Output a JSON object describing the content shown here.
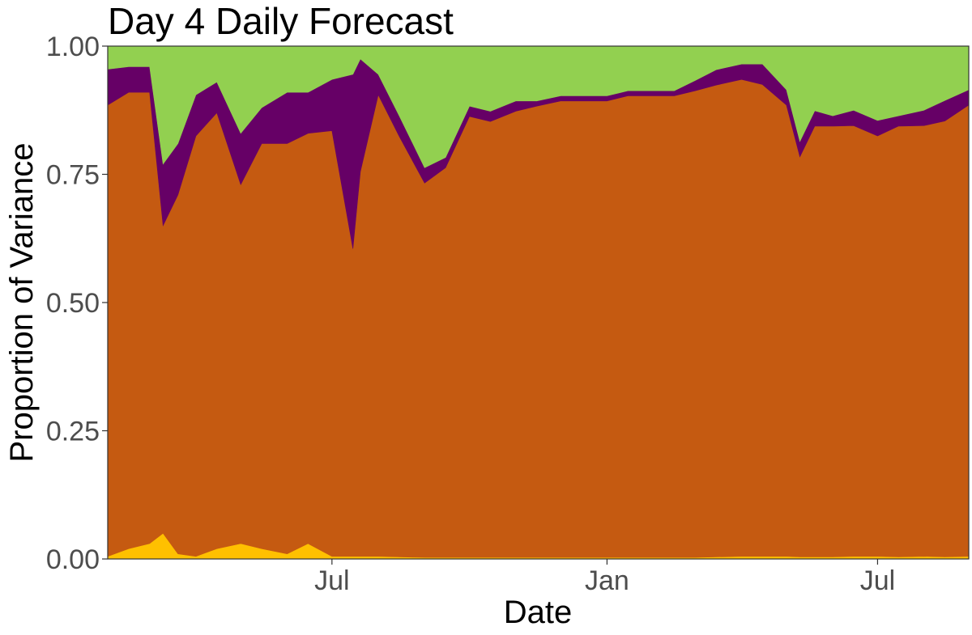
{
  "chart_data": {
    "type": "area",
    "stacked": true,
    "title": "Day 4 Daily Forecast",
    "xlabel": "Date",
    "ylabel": "Proportion of Variance",
    "ylim": [
      0,
      1
    ],
    "xlim": [
      "2018-02-01",
      "2019-08-31"
    ],
    "grid": false,
    "legend": "none",
    "y_ticks": [
      {
        "value": 0,
        "label": "0.00"
      },
      {
        "value": 0.25,
        "label": "0.25"
      },
      {
        "value": 0.5,
        "label": "0.50"
      },
      {
        "value": 0.75,
        "label": "0.75"
      },
      {
        "value": 1,
        "label": "1.00"
      }
    ],
    "x_ticks": [
      {
        "date": "2018-07-01",
        "label": "Jul"
      },
      {
        "date": "2019-01-01",
        "label": "Jan"
      },
      {
        "date": "2019-07-01",
        "label": "Jul"
      }
    ],
    "x": [
      "2018-02-01",
      "2018-02-15",
      "2018-03-01",
      "2018-03-10",
      "2018-03-20",
      "2018-04-01",
      "2018-04-15",
      "2018-05-01",
      "2018-05-15",
      "2018-06-01",
      "2018-06-15",
      "2018-07-01",
      "2018-07-15",
      "2018-07-20",
      "2018-08-01",
      "2018-08-15",
      "2018-09-01",
      "2018-09-15",
      "2018-10-01",
      "2018-10-15",
      "2018-11-01",
      "2018-11-15",
      "2018-12-01",
      "2018-12-15",
      "2019-01-01",
      "2019-01-15",
      "2019-02-01",
      "2019-02-15",
      "2019-03-01",
      "2019-03-15",
      "2019-04-01",
      "2019-04-15",
      "2019-05-01",
      "2019-05-10",
      "2019-05-20",
      "2019-06-01",
      "2019-06-15",
      "2019-07-01",
      "2019-07-15",
      "2019-08-01",
      "2019-08-15",
      "2019-08-31"
    ],
    "series": [
      {
        "color": "#ffc000",
        "values": [
          0.005,
          0.02,
          0.03,
          0.05,
          0.01,
          0.005,
          0.02,
          0.03,
          0.02,
          0.01,
          0.03,
          0.005,
          0.005,
          0.005,
          0.005,
          0.004,
          0.003,
          0.003,
          0.003,
          0.003,
          0.003,
          0.003,
          0.003,
          0.003,
          0.003,
          0.003,
          0.003,
          0.003,
          0.003,
          0.004,
          0.005,
          0.005,
          0.005,
          0.004,
          0.004,
          0.004,
          0.005,
          0.005,
          0.004,
          0.005,
          0.004,
          0.005
        ]
      },
      {
        "color": "#c55a11",
        "values": [
          0.88,
          0.89,
          0.88,
          0.6,
          0.7,
          0.82,
          0.85,
          0.7,
          0.79,
          0.8,
          0.8,
          0.83,
          0.6,
          0.75,
          0.9,
          0.82,
          0.73,
          0.76,
          0.86,
          0.85,
          0.87,
          0.88,
          0.89,
          0.89,
          0.89,
          0.9,
          0.9,
          0.9,
          0.91,
          0.92,
          0.93,
          0.92,
          0.88,
          0.78,
          0.84,
          0.84,
          0.84,
          0.82,
          0.84,
          0.84,
          0.85,
          0.88
        ]
      },
      {
        "color": "#660066",
        "values": [
          0.07,
          0.05,
          0.05,
          0.12,
          0.1,
          0.08,
          0.06,
          0.1,
          0.07,
          0.1,
          0.08,
          0.1,
          0.34,
          0.22,
          0.04,
          0.04,
          0.03,
          0.02,
          0.02,
          0.02,
          0.02,
          0.01,
          0.01,
          0.01,
          0.01,
          0.01,
          0.01,
          0.01,
          0.02,
          0.03,
          0.03,
          0.04,
          0.03,
          0.03,
          0.03,
          0.02,
          0.03,
          0.03,
          0.02,
          0.03,
          0.04,
          0.03
        ]
      },
      {
        "color": "#92d050",
        "values": [
          0.045,
          0.04,
          0.04,
          0.23,
          0.19,
          0.095,
          0.07,
          0.17,
          0.12,
          0.09,
          0.09,
          0.065,
          0.055,
          0.025,
          0.055,
          0.136,
          0.237,
          0.217,
          0.117,
          0.127,
          0.107,
          0.107,
          0.097,
          0.097,
          0.097,
          0.087,
          0.087,
          0.087,
          0.077,
          0.046,
          0.035,
          0.035,
          0.085,
          0.186,
          0.126,
          0.136,
          0.125,
          0.145,
          0.136,
          0.125,
          0.106,
          0.085
        ]
      }
    ]
  }
}
